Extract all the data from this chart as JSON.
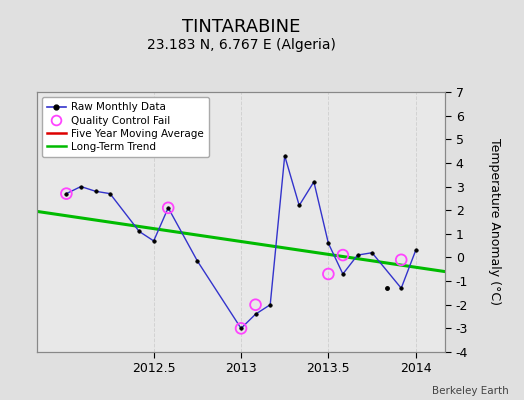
{
  "title": "TINTARABINE",
  "subtitle": "23.183 N, 6.767 E (Algeria)",
  "ylabel_right": "Temperature Anomaly (°C)",
  "watermark": "Berkeley Earth",
  "background_color": "#e0e0e0",
  "plot_bg_color": "#e8e8e8",
  "ylim": [
    -4,
    7
  ],
  "yticks": [
    -4,
    -3,
    -2,
    -1,
    0,
    1,
    2,
    3,
    4,
    5,
    6,
    7
  ],
  "xlim": [
    2011.83,
    2014.17
  ],
  "xticks": [
    2012.5,
    2013.0,
    2013.5,
    2014.0
  ],
  "xticklabels": [
    "2012.5",
    "2013",
    "2013.5",
    "2014"
  ],
  "raw_x": [
    2012.0,
    2012.083,
    2012.167,
    2012.25,
    2012.417,
    2012.5,
    2012.583,
    2012.75,
    2013.0,
    2013.083,
    2013.167,
    2013.25,
    2013.333,
    2013.417,
    2013.5,
    2013.583,
    2013.667,
    2013.75,
    2013.917,
    2014.0
  ],
  "raw_y": [
    2.7,
    3.0,
    2.8,
    2.7,
    1.1,
    0.7,
    2.1,
    -0.15,
    -3.0,
    -2.4,
    -2.0,
    4.3,
    2.2,
    3.2,
    0.6,
    -0.7,
    0.1,
    0.2,
    -1.3,
    0.3
  ],
  "isolated_x": [
    2013.833
  ],
  "isolated_y": [
    -1.3
  ],
  "qc_fail_x": [
    2012.0,
    2012.583,
    2013.0,
    2013.083,
    2013.5,
    2013.583,
    2013.917
  ],
  "qc_fail_y": [
    2.7,
    2.1,
    -3.0,
    -2.0,
    -0.7,
    0.1,
    -0.1
  ],
  "trend_x": [
    2011.83,
    2014.17
  ],
  "trend_y": [
    1.95,
    -0.6
  ],
  "raw_color": "#3333cc",
  "raw_marker_color": "#000000",
  "qc_color": "#ff44ff",
  "trend_color": "#00bb00",
  "ma_color": "#dd0000",
  "grid_color": "#cccccc",
  "title_fontsize": 13,
  "subtitle_fontsize": 10,
  "label_fontsize": 9,
  "tick_fontsize": 9
}
